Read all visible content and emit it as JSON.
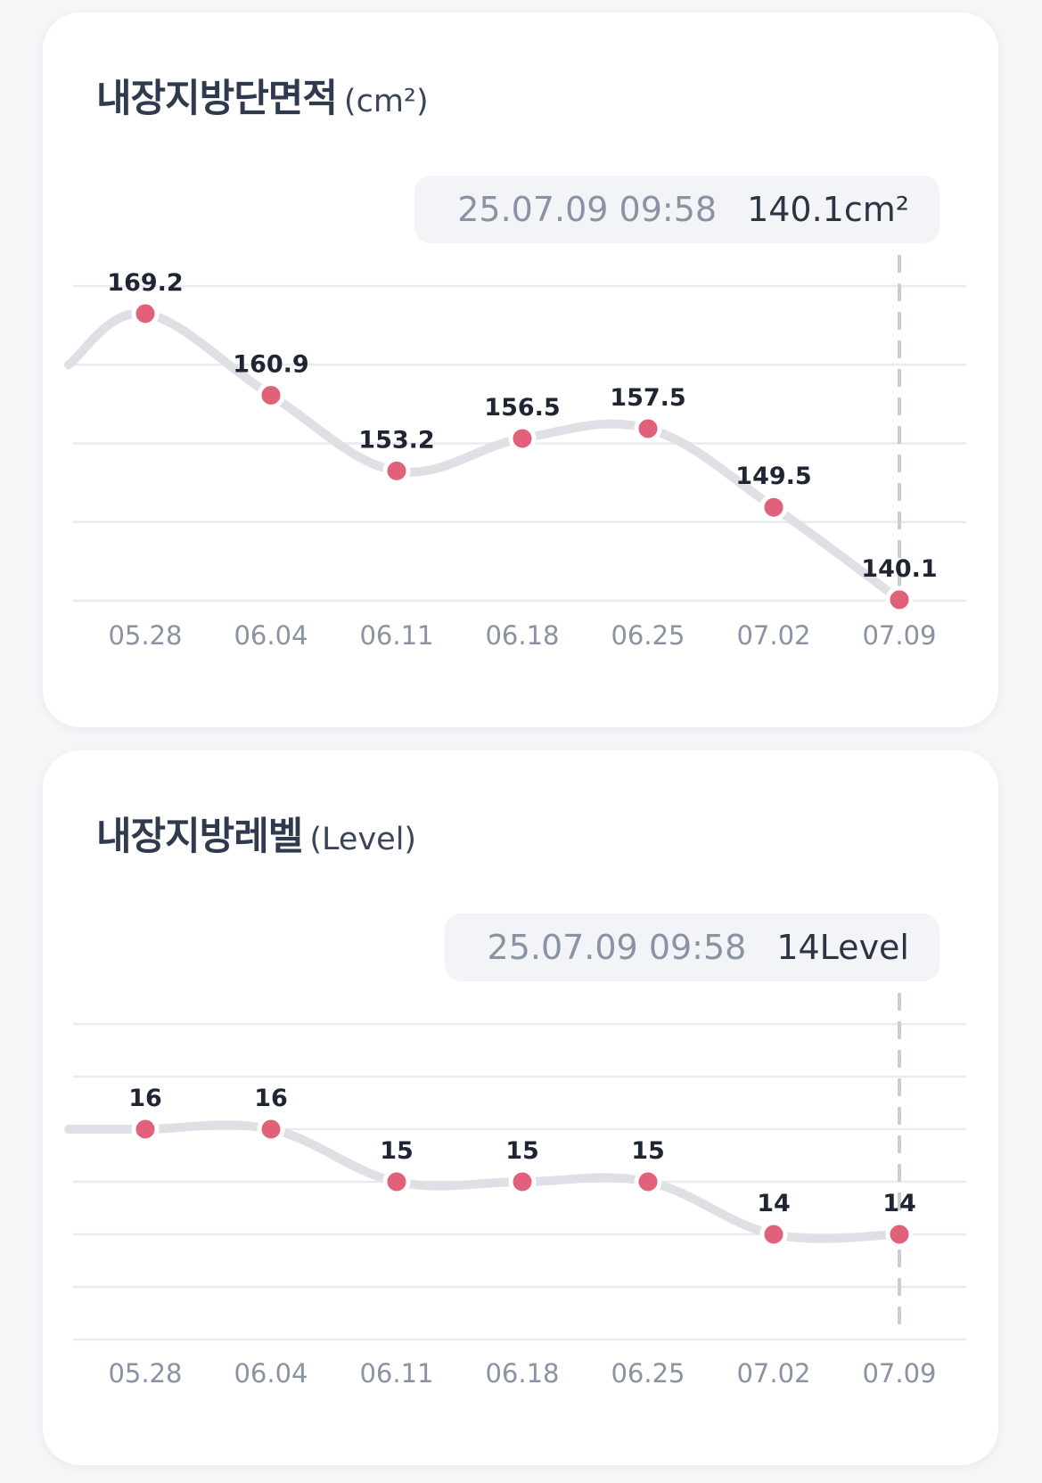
{
  "cards": [
    {
      "id": "area",
      "title": "내장지방단면적",
      "unit": "(cm²)",
      "tooltip": {
        "time": "25.07.09 09:58",
        "value": "140.1cm²"
      },
      "chart_data": {
        "type": "line",
        "categories": [
          "05.28",
          "06.04",
          "06.11",
          "06.18",
          "06.25",
          "07.02",
          "07.09"
        ],
        "values": [
          169.2,
          160.9,
          153.2,
          156.5,
          157.5,
          149.5,
          140.1
        ],
        "data_labels": [
          "169.2",
          "160.9",
          "153.2",
          "156.5",
          "157.5",
          "149.5",
          "140.1"
        ],
        "ylim": [
          140,
          172
        ],
        "grid_y": [
          172,
          164,
          156,
          148,
          140
        ],
        "lead_in_value": 164,
        "highlight_index": 6,
        "colors": {
          "point": "#e1617b",
          "line": "#dfe0e5",
          "grid": "#e9ebef"
        }
      }
    },
    {
      "id": "level",
      "title": "내장지방레벨",
      "unit": "(Level)",
      "tooltip": {
        "time": "25.07.09 09:58",
        "value": "14Level"
      },
      "chart_data": {
        "type": "line",
        "categories": [
          "05.28",
          "06.04",
          "06.11",
          "06.18",
          "06.25",
          "07.02",
          "07.09"
        ],
        "values": [
          16,
          16,
          15,
          15,
          15,
          14,
          14
        ],
        "data_labels": [
          "16",
          "16",
          "15",
          "15",
          "15",
          "14",
          "14"
        ],
        "ylim": [
          12,
          18
        ],
        "grid_y": [
          18,
          17,
          16,
          15,
          14,
          13,
          12
        ],
        "lead_in_value": 16,
        "highlight_index": 6,
        "colors": {
          "point": "#e1617b",
          "line": "#dfe0e5",
          "grid": "#e9ebef"
        }
      }
    }
  ]
}
